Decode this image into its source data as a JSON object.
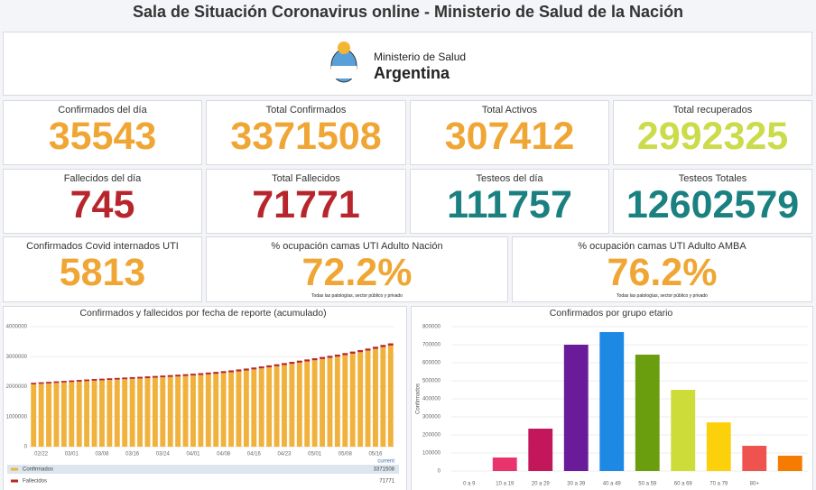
{
  "header": {
    "title": "Sala de Situación Coronavirus online - Ministerio de Salud de la Nación"
  },
  "logo": {
    "line1": "Ministerio de Salud",
    "line2": "Argentina"
  },
  "cards": [
    {
      "label": "Confirmados del día",
      "value": 35543,
      "color": "#f0a634"
    },
    {
      "label": "Total Confirmados",
      "value": 3371508,
      "color": "#f0a634"
    },
    {
      "label": "Total Activos",
      "value": 307412,
      "color": "#f0a634"
    },
    {
      "label": "Total recuperados",
      "value": 2992325,
      "color": "#cbdb4a"
    },
    {
      "label": "Fallecidos del día",
      "value": 745,
      "color": "#b8262d"
    },
    {
      "label": "Total Fallecidos",
      "value": 71771,
      "color": "#b8262d"
    },
    {
      "label": "Testeos del día",
      "value": 111757,
      "color": "#1a8080"
    },
    {
      "label": "Testeos Totales",
      "value": 12602579,
      "color": "#1a8080"
    },
    {
      "label": "Confirmados Covid internados UTI",
      "value": 5813,
      "color": "#f0a634"
    },
    {
      "label": "% ocupación camas UTI Adulto Nación",
      "value": "72.2%",
      "color": "#f0a634",
      "note": "Todas las patologías, sector público y privado"
    },
    {
      "label": "% ocupación camas UTI Adulto AMBA",
      "value": "76.2%",
      "color": "#f0a634",
      "note": "Todas las patologías, sector público y privado"
    }
  ],
  "chart_data": [
    {
      "type": "stacked-bar",
      "title": "Confirmados y fallecidos por fecha de reporte (acumulado)",
      "categories": [
        null,
        "02/22",
        null,
        null,
        null,
        "03/01",
        null,
        null,
        null,
        "03/08",
        null,
        null,
        null,
        "03/16",
        null,
        null,
        null,
        "03/24",
        null,
        null,
        null,
        "04/01",
        null,
        null,
        null,
        "04/08",
        null,
        null,
        null,
        "04/16",
        null,
        null,
        null,
        "04/23",
        null,
        null,
        null,
        "05/01",
        null,
        null,
        null,
        "05/08",
        null,
        null,
        null,
        "05/16",
        null,
        null
      ],
      "series": [
        {
          "name": "Confirmados",
          "color": "#f0b23c",
          "values": [
            2080000,
            2095000,
            2110000,
            2125000,
            2140000,
            2155000,
            2170000,
            2185000,
            2200000,
            2212000,
            2224000,
            2236000,
            2248000,
            2260000,
            2272000,
            2285000,
            2298000,
            2312000,
            2326000,
            2340000,
            2355000,
            2372000,
            2390000,
            2410000,
            2430000,
            2455000,
            2480000,
            2510000,
            2540000,
            2575000,
            2610000,
            2645000,
            2680000,
            2720000,
            2760000,
            2800000,
            2840000,
            2880000,
            2920000,
            2960000,
            3000000,
            3050000,
            3100000,
            3150000,
            3200000,
            3260000,
            3320000,
            3371508
          ]
        },
        {
          "name": "Fallecidos",
          "color": "#b8262d",
          "values": [
            51000,
            51450,
            51900,
            52350,
            52800,
            53250,
            53700,
            54150,
            54600,
            55050,
            55500,
            55950,
            56400,
            56850,
            57300,
            57750,
            58200,
            58650,
            59100,
            59550,
            60000,
            60450,
            60900,
            61350,
            61800,
            62250,
            62700,
            63150,
            63600,
            64050,
            64500,
            64950,
            65400,
            65850,
            66300,
            66750,
            67200,
            67650,
            68100,
            68550,
            69000,
            69450,
            69900,
            70350,
            70800,
            71250,
            71700,
            71771
          ]
        }
      ],
      "legend_header": "current",
      "ylim": [
        0,
        4000000
      ],
      "yticks": [
        0,
        1000000,
        2000000,
        3000000,
        4000000
      ],
      "grid": true
    },
    {
      "type": "bar",
      "title": "Confirmados por grupo etario",
      "y_label": "Confirmados",
      "categories": [
        "0 a 9",
        "10 a 19",
        "20 a 29",
        "30 a 39",
        "40 a 49",
        "50 a 59",
        "60 a 69",
        "70 a 79",
        "80+",
        null
      ],
      "values": [
        0,
        75000,
        235000,
        700000,
        770000,
        645000,
        450000,
        270000,
        140000,
        85000
      ],
      "colors": [
        "#e8336d",
        "#e8336d",
        "#c2185b",
        "#6a1b9a",
        "#1e88e5",
        "#6a9e0f",
        "#cddc39",
        "#fdd00c",
        "#ef5350",
        "#f57c00"
      ],
      "ylim": [
        0,
        800000
      ],
      "yticks": [
        0,
        100000,
        200000,
        300000,
        400000,
        500000,
        600000,
        700000,
        800000
      ],
      "grid": true
    }
  ]
}
